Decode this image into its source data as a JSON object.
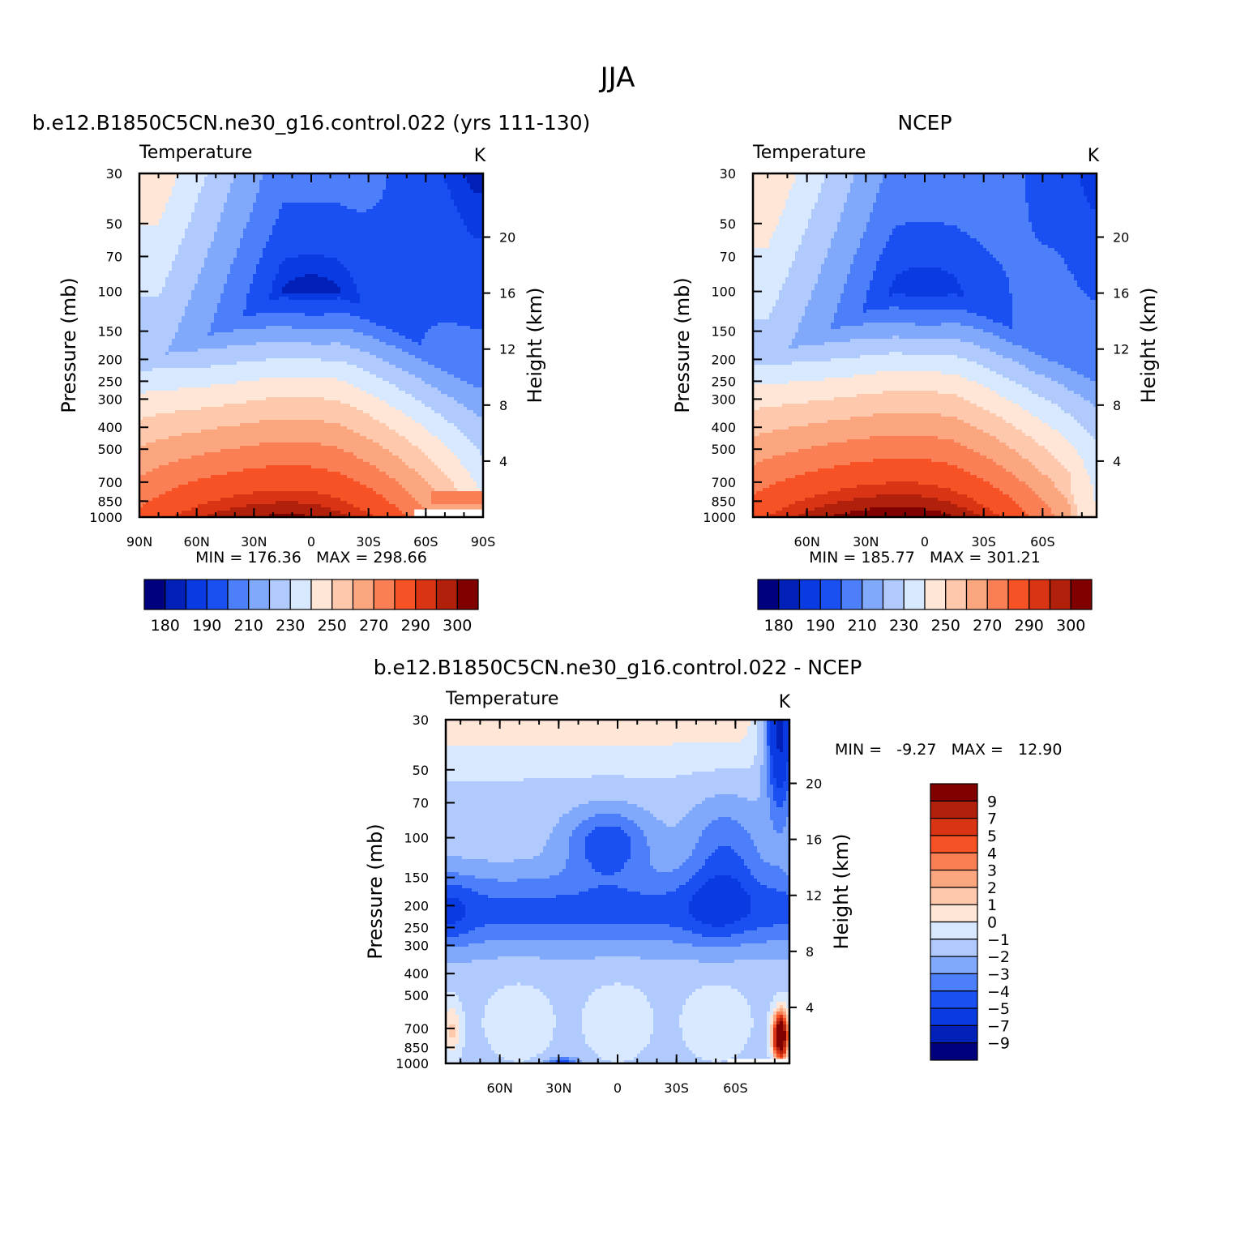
{
  "figure": {
    "title": "JJA"
  },
  "panels": [
    {
      "id": "model",
      "title": "b.e12.B1850C5CN.ne30_g16.control.022 (yrs 111-130)",
      "left_label": "Temperature",
      "right_label": "K",
      "ylabel": "Pressure (mb)",
      "ylabel_right": "Height (km)",
      "minmax": "MIN = 176.36   MAX = 298.66"
    },
    {
      "id": "obs",
      "title": "NCEP",
      "left_label": "Temperature",
      "right_label": "K",
      "ylabel": "Pressure (mb)",
      "ylabel_right": "Height (km)",
      "minmax": "MIN = 185.77   MAX = 301.21"
    },
    {
      "id": "diff",
      "title": "b.e12.B1850C5CN.ne30_g16.control.022 - NCEP",
      "left_label": "Temperature",
      "right_label": "K",
      "ylabel": "Pressure (mb)",
      "ylabel_right": "Height (km)",
      "minmax": "MIN =   -9.27   MAX =   12.90"
    }
  ],
  "chart_data": [
    {
      "type": "heatmap",
      "subtype": "filled contour, latitude-pressure cross section",
      "title": "b.e12.B1850C5CN.ne30_g16.control.022 (yrs 111-130)",
      "variable": "Temperature",
      "units": "K",
      "ylabel": "Pressure (mb)",
      "ylabel_right": "Height (km)",
      "x_tick_labels": [
        "90N",
        "60N",
        "30N",
        "0",
        "30S",
        "60S",
        "90S"
      ],
      "x_ticks": [
        90,
        60,
        30,
        0,
        -30,
        -60,
        -90
      ],
      "xlim": [
        90,
        -90
      ],
      "y_scale": "log",
      "y_ticks": [
        30,
        50,
        70,
        100,
        150,
        200,
        250,
        300,
        400,
        500,
        700,
        850,
        1000
      ],
      "ylim": [
        1000,
        30
      ],
      "height_ticks_km": [
        4,
        8,
        12,
        16,
        20
      ],
      "levels": [
        180,
        185,
        190,
        200,
        210,
        220,
        230,
        240,
        250,
        260,
        270,
        280,
        290,
        295,
        300
      ],
      "colorbar_labels": [
        "180",
        "190",
        "210",
        "230",
        "250",
        "270",
        "290",
        "300"
      ],
      "colors": [
        "#00007f",
        "#0020b8",
        "#0a3ae2",
        "#1a4ff2",
        "#4d7ffa",
        "#80a8fb",
        "#b0cafe",
        "#d8e8ff",
        "#ffe6d6",
        "#fec8ac",
        "#fca680",
        "#fa7f55",
        "#f65225",
        "#d93414",
        "#b1200a",
        "#800000"
      ],
      "min": 176.36,
      "max": 298.66
    },
    {
      "type": "heatmap",
      "subtype": "filled contour, latitude-pressure cross section",
      "title": "NCEP",
      "variable": "Temperature",
      "units": "K",
      "ylabel": "Pressure (mb)",
      "ylabel_right": "Height (km)",
      "x_tick_labels": [
        "60N",
        "30N",
        "0",
        "30S",
        "60S"
      ],
      "x_ticks": [
        60,
        30,
        0,
        -30,
        -60
      ],
      "xlim": [
        87.5,
        -87.5
      ],
      "y_scale": "log",
      "y_ticks": [
        30,
        50,
        70,
        100,
        150,
        200,
        250,
        300,
        400,
        500,
        700,
        850,
        1000
      ],
      "ylim": [
        1000,
        30
      ],
      "height_ticks_km": [
        4,
        8,
        12,
        16,
        20
      ],
      "levels": [
        180,
        185,
        190,
        200,
        210,
        220,
        230,
        240,
        250,
        260,
        270,
        280,
        290,
        295,
        300
      ],
      "colorbar_labels": [
        "180",
        "190",
        "210",
        "230",
        "250",
        "270",
        "290",
        "300"
      ],
      "colors": [
        "#00007f",
        "#0020b8",
        "#0a3ae2",
        "#1a4ff2",
        "#4d7ffa",
        "#80a8fb",
        "#b0cafe",
        "#d8e8ff",
        "#ffe6d6",
        "#fec8ac",
        "#fca680",
        "#fa7f55",
        "#f65225",
        "#d93414",
        "#b1200a",
        "#800000"
      ],
      "min": 185.77,
      "max": 301.21
    },
    {
      "type": "heatmap",
      "subtype": "filled contour, latitude-pressure cross section (difference)",
      "title": "b.e12.B1850C5CN.ne30_g16.control.022 - NCEP",
      "variable": "Temperature",
      "units": "K",
      "ylabel": "Pressure (mb)",
      "ylabel_right": "Height (km)",
      "x_tick_labels": [
        "60N",
        "30N",
        "0",
        "30S",
        "60S"
      ],
      "x_ticks": [
        60,
        30,
        0,
        -30,
        -60
      ],
      "xlim": [
        87.5,
        -87.5
      ],
      "y_scale": "log",
      "y_ticks": [
        30,
        50,
        70,
        100,
        150,
        200,
        250,
        300,
        400,
        500,
        700,
        850,
        1000
      ],
      "ylim": [
        1000,
        30
      ],
      "height_ticks_km": [
        4,
        8,
        12,
        16,
        20
      ],
      "levels": [
        -9,
        -7,
        -5,
        -4,
        -3,
        -2,
        -1,
        0,
        1,
        2,
        3,
        4,
        5,
        7,
        9
      ],
      "colorbar_labels": [
        "9",
        "7",
        "5",
        "4",
        "3",
        "2",
        "1",
        "0",
        "-1",
        "-2",
        "-3",
        "-4",
        "-5",
        "-7",
        "-9"
      ],
      "colors": [
        "#00007f",
        "#0020b8",
        "#0a3ae2",
        "#1a4ff2",
        "#4d7ffa",
        "#80a8fb",
        "#b0cafe",
        "#d8e8ff",
        "#ffe6d6",
        "#fec8ac",
        "#fca680",
        "#fa7f55",
        "#f65225",
        "#d93414",
        "#b1200a",
        "#800000"
      ],
      "min": -9.27,
      "max": 12.9
    }
  ]
}
